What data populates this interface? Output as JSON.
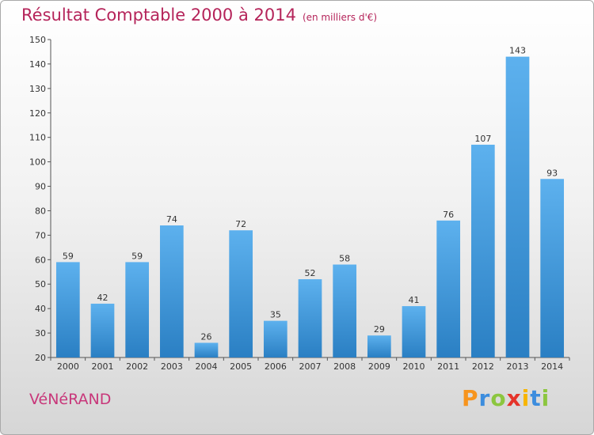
{
  "title": "Résultat Comptable 2000 à 2014",
  "unit_label": "(en milliers d'€)",
  "commune": "VéNéRAND",
  "brand": {
    "letters": [
      "P",
      "r",
      "o",
      "x",
      "i",
      "t",
      "i"
    ],
    "colors": [
      "#f7941d",
      "#3c8dde",
      "#8cc63f",
      "#e5332a",
      "#f7b500",
      "#3c8dde",
      "#8cc63f"
    ]
  },
  "colors": {
    "bar": "#3d95d6",
    "bar_light": "#5aaeea",
    "title": "#b5245a",
    "commune": "#c8377a"
  },
  "chart_data": {
    "type": "bar",
    "categories": [
      "2000",
      "2001",
      "2002",
      "2003",
      "2004",
      "2005",
      "2006",
      "2007",
      "2008",
      "2009",
      "2010",
      "2011",
      "2012",
      "2013",
      "2014"
    ],
    "values": [
      59,
      42,
      59,
      74,
      26,
      72,
      35,
      52,
      58,
      29,
      41,
      76,
      107,
      143,
      93
    ],
    "ylim": [
      20,
      150
    ],
    "yticks": [
      20,
      30,
      40,
      50,
      60,
      70,
      80,
      90,
      100,
      110,
      120,
      130,
      140,
      150
    ],
    "grid": false,
    "data_labels": true
  }
}
